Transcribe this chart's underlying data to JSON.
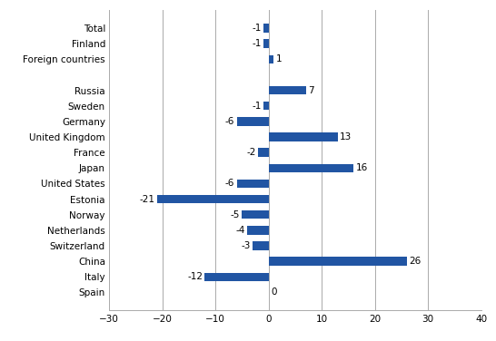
{
  "categories": [
    "Total",
    "Finland",
    "Foreign countries",
    "",
    "Russia",
    "Sweden",
    "Germany",
    "United Kingdom",
    "France",
    "Japan",
    "United States",
    "Estonia",
    "Norway",
    "Netherlands",
    "Switzerland",
    "China",
    "Italy",
    "Spain"
  ],
  "values": [
    -1,
    -1,
    1,
    null,
    7,
    -1,
    -6,
    13,
    -2,
    16,
    -6,
    -21,
    -5,
    -4,
    -3,
    26,
    -12,
    0
  ],
  "bar_color": "#2155a3",
  "xlim": [
    -30,
    40
  ],
  "xticks": [
    -30,
    -20,
    -10,
    0,
    10,
    20,
    30,
    40
  ],
  "figsize": [
    5.46,
    3.76
  ],
  "dpi": 100,
  "label_fontsize": 7.5,
  "tick_fontsize": 7.5,
  "bar_height": 0.55
}
